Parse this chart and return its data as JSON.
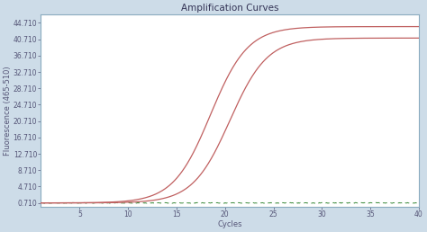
{
  "title": "Amplification Curves",
  "xlabel": "Cycles",
  "ylabel": "Fluorescence (465-510)",
  "xlim": [
    1,
    40
  ],
  "ylim": [
    -0.3,
    46.71
  ],
  "yticks": [
    0.71,
    4.71,
    8.71,
    12.71,
    16.71,
    20.71,
    24.71,
    28.71,
    32.71,
    36.71,
    40.71,
    44.71
  ],
  "xticks": [
    5,
    10,
    15,
    20,
    25,
    30,
    35,
    40
  ],
  "background_color": "#cddce8",
  "plot_bg_color": "#ffffff",
  "curve1_color": "#c06060",
  "curve2_color": "#c06060",
  "flat_line_color": "#3a8a3a",
  "title_fontsize": 7.5,
  "axis_fontsize": 6,
  "tick_fontsize": 5.5,
  "curve1_midpoint": 18.5,
  "curve1_steepness": 0.52,
  "curve1_max": 43.8,
  "curve1_min": 0.71,
  "curve2_midpoint": 20.5,
  "curve2_steepness": 0.52,
  "curve2_max": 41.0,
  "curve2_min": 0.71,
  "spine_color": "#8aabbf",
  "tick_color": "#555577"
}
